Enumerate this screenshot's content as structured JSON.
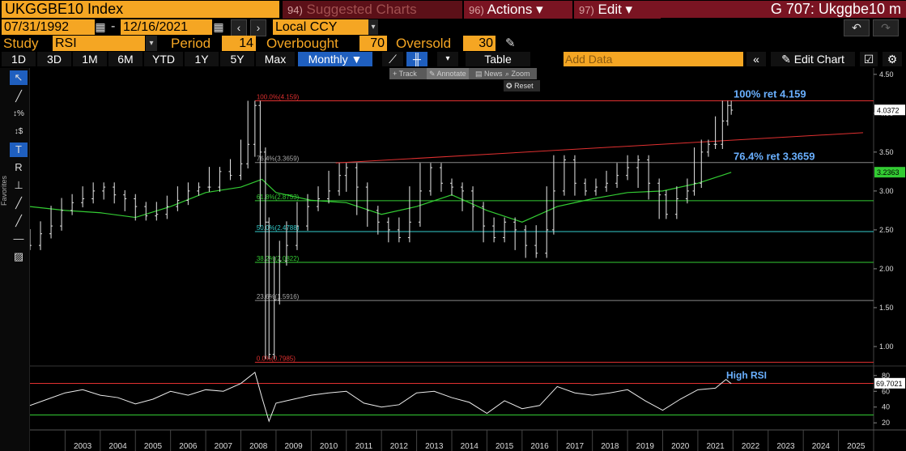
{
  "header": {
    "ticker": "UKGGBE10 Index",
    "suggested_num": "94)",
    "suggested_label": "Suggested Charts",
    "actions_num": "96)",
    "actions_label": "Actions ▾",
    "edit_num": "97)",
    "edit_label": "Edit ▾",
    "title": "G 707: Ukggbe10 m"
  },
  "controls": {
    "start_date": "07/31/1992",
    "end_date": "12/16/2021",
    "dash": "-",
    "currency": "Local CCY",
    "study_label": "Study",
    "study_value": "RSI",
    "period_label": "Period",
    "period_value": "14",
    "overbought_label": "Overbought",
    "overbought_value": "70",
    "oversold_label": "Oversold",
    "oversold_value": "30"
  },
  "toolbar": {
    "ranges": [
      "1D",
      "3D",
      "1M",
      "6M",
      "YTD",
      "1Y",
      "5Y",
      "Max"
    ],
    "frequency": "Monthly ▼",
    "table_label": "Table",
    "add_data_placeholder": "Add Data",
    "edit_chart_label": "Edit Chart"
  },
  "floating_menu": {
    "track": "Track",
    "annotate": "Annotate",
    "news": "News",
    "zoom": "Zoom",
    "reset": "Reset"
  },
  "left_tools": {
    "favorites_label": "Favorites"
  },
  "chart_data": [
    {
      "type": "line",
      "title": "",
      "price_axis": {
        "ylim": [
          0.75,
          4.55
        ],
        "ticks": [
          "4.50",
          "4.00",
          "3.50",
          "3.00",
          "2.50",
          "2.00",
          "1.50",
          "1.00"
        ]
      },
      "x_ticks": [
        "2003",
        "2004",
        "2005",
        "2006",
        "2007",
        "2008",
        "2009",
        "2010",
        "2011",
        "2012",
        "2013",
        "2014",
        "2015",
        "2016",
        "2017",
        "2018",
        "2019",
        "2020",
        "2021",
        "2022",
        "2023",
        "2024",
        "2025"
      ],
      "last_price_label": "4.0372",
      "ma_label": "3.2363",
      "fib_levels": [
        {
          "label": "100.0%(4.159)",
          "value": 4.159,
          "color": "#e03030"
        },
        {
          "label": "76.4%(3.3659)",
          "value": 3.3659,
          "color": "#888888"
        },
        {
          "label": "61.8%(2.8753)",
          "value": 2.8753,
          "color": "#33cc33"
        },
        {
          "label": "50.0%(2.4788)",
          "value": 2.4788,
          "color": "#33cccc"
        },
        {
          "label": "38.2%(2.0822)",
          "value": 2.0822,
          "color": "#33cc33"
        },
        {
          "label": "23.6%(1.5916)",
          "value": 1.5916,
          "color": "#888888"
        },
        {
          "label": "0.0%(0.7985)",
          "value": 0.7985,
          "color": "#e03030"
        }
      ],
      "annotations": [
        {
          "text": "100% ret 4.159",
          "color": "#6ab0ff"
        },
        {
          "text": "76.4% ret 3.3659",
          "color": "#6ab0ff"
        }
      ],
      "trendline": {
        "x": [
          2010.7,
          2025.7
        ],
        "y": [
          3.36,
          3.75
        ],
        "color": "#e03030"
      },
      "price_series": [
        {
          "x": 2002.0,
          "y": 2.3
        },
        {
          "x": 2002.3,
          "y": 2.45
        },
        {
          "x": 2002.6,
          "y": 2.55
        },
        {
          "x": 2002.9,
          "y": 2.75
        },
        {
          "x": 2003.2,
          "y": 2.85
        },
        {
          "x": 2003.5,
          "y": 2.9
        },
        {
          "x": 2003.8,
          "y": 3.0
        },
        {
          "x": 2004.1,
          "y": 3.05
        },
        {
          "x": 2004.4,
          "y": 2.95
        },
        {
          "x": 2004.7,
          "y": 2.9
        },
        {
          "x": 2005.0,
          "y": 2.8
        },
        {
          "x": 2005.3,
          "y": 2.68
        },
        {
          "x": 2005.6,
          "y": 2.7
        },
        {
          "x": 2005.9,
          "y": 2.8
        },
        {
          "x": 2006.2,
          "y": 2.88
        },
        {
          "x": 2006.5,
          "y": 3.0
        },
        {
          "x": 2006.8,
          "y": 3.05
        },
        {
          "x": 2007.1,
          "y": 3.05
        },
        {
          "x": 2007.4,
          "y": 3.25
        },
        {
          "x": 2007.7,
          "y": 3.2
        },
        {
          "x": 2008.0,
          "y": 3.35
        },
        {
          "x": 2008.2,
          "y": 3.6
        },
        {
          "x": 2008.4,
          "y": 4.1
        },
        {
          "x": 2008.55,
          "y": 3.5
        },
        {
          "x": 2008.7,
          "y": 2.6
        },
        {
          "x": 2008.8,
          "y": 0.9
        },
        {
          "x": 2008.95,
          "y": 1.6
        },
        {
          "x": 2009.1,
          "y": 2.1
        },
        {
          "x": 2009.3,
          "y": 2.3
        },
        {
          "x": 2009.6,
          "y": 2.55
        },
        {
          "x": 2009.9,
          "y": 2.8
        },
        {
          "x": 2010.2,
          "y": 2.9
        },
        {
          "x": 2010.5,
          "y": 3.0
        },
        {
          "x": 2010.8,
          "y": 3.2
        },
        {
          "x": 2011.0,
          "y": 3.3
        },
        {
          "x": 2011.3,
          "y": 3.05
        },
        {
          "x": 2011.6,
          "y": 2.75
        },
        {
          "x": 2011.9,
          "y": 2.6
        },
        {
          "x": 2012.2,
          "y": 2.5
        },
        {
          "x": 2012.5,
          "y": 2.4
        },
        {
          "x": 2012.8,
          "y": 2.6
        },
        {
          "x": 2013.1,
          "y": 3.0
        },
        {
          "x": 2013.4,
          "y": 3.3
        },
        {
          "x": 2013.7,
          "y": 3.1
        },
        {
          "x": 2014.0,
          "y": 3.05
        },
        {
          "x": 2014.3,
          "y": 3.0
        },
        {
          "x": 2014.6,
          "y": 2.8
        },
        {
          "x": 2014.9,
          "y": 2.55
        },
        {
          "x": 2015.2,
          "y": 2.4
        },
        {
          "x": 2015.5,
          "y": 2.6
        },
        {
          "x": 2015.8,
          "y": 2.5
        },
        {
          "x": 2016.1,
          "y": 2.3
        },
        {
          "x": 2016.4,
          "y": 2.2
        },
        {
          "x": 2016.7,
          "y": 2.5
        },
        {
          "x": 2016.9,
          "y": 3.0
        },
        {
          "x": 2017.2,
          "y": 3.4
        },
        {
          "x": 2017.5,
          "y": 3.1
        },
        {
          "x": 2017.8,
          "y": 3.0
        },
        {
          "x": 2018.1,
          "y": 3.05
        },
        {
          "x": 2018.4,
          "y": 3.1
        },
        {
          "x": 2018.7,
          "y": 3.2
        },
        {
          "x": 2019.0,
          "y": 3.3
        },
        {
          "x": 2019.3,
          "y": 3.4
        },
        {
          "x": 2019.6,
          "y": 3.1
        },
        {
          "x": 2019.9,
          "y": 2.95
        },
        {
          "x": 2020.1,
          "y": 2.7
        },
        {
          "x": 2020.4,
          "y": 2.9
        },
        {
          "x": 2020.7,
          "y": 3.0
        },
        {
          "x": 2020.9,
          "y": 3.1
        },
        {
          "x": 2021.1,
          "y": 3.5
        },
        {
          "x": 2021.3,
          "y": 3.6
        },
        {
          "x": 2021.5,
          "y": 3.6
        },
        {
          "x": 2021.7,
          "y": 3.9
        },
        {
          "x": 2021.85,
          "y": 4.1
        },
        {
          "x": 2021.95,
          "y": 4.04
        }
      ],
      "ma_series": [
        {
          "x": 2002.0,
          "y": 2.8
        },
        {
          "x": 2003.0,
          "y": 2.75
        },
        {
          "x": 2004.0,
          "y": 2.72
        },
        {
          "x": 2005.0,
          "y": 2.66
        },
        {
          "x": 2006.0,
          "y": 2.8
        },
        {
          "x": 2007.0,
          "y": 2.98
        },
        {
          "x": 2008.0,
          "y": 3.05
        },
        {
          "x": 2008.6,
          "y": 3.15
        },
        {
          "x": 2009.0,
          "y": 2.98
        },
        {
          "x": 2010.0,
          "y": 2.88
        },
        {
          "x": 2011.0,
          "y": 2.85
        },
        {
          "x": 2012.0,
          "y": 2.7
        },
        {
          "x": 2013.0,
          "y": 2.8
        },
        {
          "x": 2014.0,
          "y": 2.95
        },
        {
          "x": 2015.0,
          "y": 2.75
        },
        {
          "x": 2016.0,
          "y": 2.6
        },
        {
          "x": 2017.0,
          "y": 2.8
        },
        {
          "x": 2018.0,
          "y": 2.9
        },
        {
          "x": 2019.0,
          "y": 2.98
        },
        {
          "x": 2020.0,
          "y": 3.0
        },
        {
          "x": 2021.0,
          "y": 3.1
        },
        {
          "x": 2021.95,
          "y": 3.24
        }
      ]
    },
    {
      "type": "line",
      "title": "",
      "rsi_axis": {
        "ylim": [
          12,
          88
        ],
        "ticks": [
          "80",
          "60",
          "40",
          "20"
        ]
      },
      "last_rsi_label": "69.7021",
      "annotation": {
        "text": "High RSI",
        "color": "#6ab0ff"
      },
      "overbought": 70,
      "oversold": 30,
      "rsi_series": [
        {
          "x": 2002.0,
          "y": 42
        },
        {
          "x": 2002.5,
          "y": 50
        },
        {
          "x": 2003.0,
          "y": 58
        },
        {
          "x": 2003.5,
          "y": 62
        },
        {
          "x": 2004.0,
          "y": 55
        },
        {
          "x": 2004.5,
          "y": 52
        },
        {
          "x": 2005.0,
          "y": 44
        },
        {
          "x": 2005.5,
          "y": 50
        },
        {
          "x": 2006.0,
          "y": 60
        },
        {
          "x": 2006.5,
          "y": 55
        },
        {
          "x": 2007.0,
          "y": 62
        },
        {
          "x": 2007.5,
          "y": 60
        },
        {
          "x": 2008.0,
          "y": 70
        },
        {
          "x": 2008.4,
          "y": 84
        },
        {
          "x": 2008.6,
          "y": 52
        },
        {
          "x": 2008.8,
          "y": 22
        },
        {
          "x": 2009.0,
          "y": 45
        },
        {
          "x": 2009.5,
          "y": 50
        },
        {
          "x": 2010.0,
          "y": 55
        },
        {
          "x": 2010.5,
          "y": 58
        },
        {
          "x": 2011.0,
          "y": 60
        },
        {
          "x": 2011.5,
          "y": 45
        },
        {
          "x": 2012.0,
          "y": 40
        },
        {
          "x": 2012.5,
          "y": 43
        },
        {
          "x": 2013.0,
          "y": 58
        },
        {
          "x": 2013.5,
          "y": 60
        },
        {
          "x": 2014.0,
          "y": 52
        },
        {
          "x": 2014.5,
          "y": 46
        },
        {
          "x": 2015.0,
          "y": 32
        },
        {
          "x": 2015.5,
          "y": 48
        },
        {
          "x": 2016.0,
          "y": 38
        },
        {
          "x": 2016.5,
          "y": 42
        },
        {
          "x": 2017.0,
          "y": 66
        },
        {
          "x": 2017.5,
          "y": 58
        },
        {
          "x": 2018.0,
          "y": 55
        },
        {
          "x": 2018.5,
          "y": 58
        },
        {
          "x": 2019.0,
          "y": 62
        },
        {
          "x": 2019.5,
          "y": 48
        },
        {
          "x": 2020.0,
          "y": 36
        },
        {
          "x": 2020.5,
          "y": 50
        },
        {
          "x": 2021.0,
          "y": 62
        },
        {
          "x": 2021.5,
          "y": 64
        },
        {
          "x": 2021.8,
          "y": 75
        },
        {
          "x": 2021.95,
          "y": 69.7
        }
      ]
    }
  ]
}
